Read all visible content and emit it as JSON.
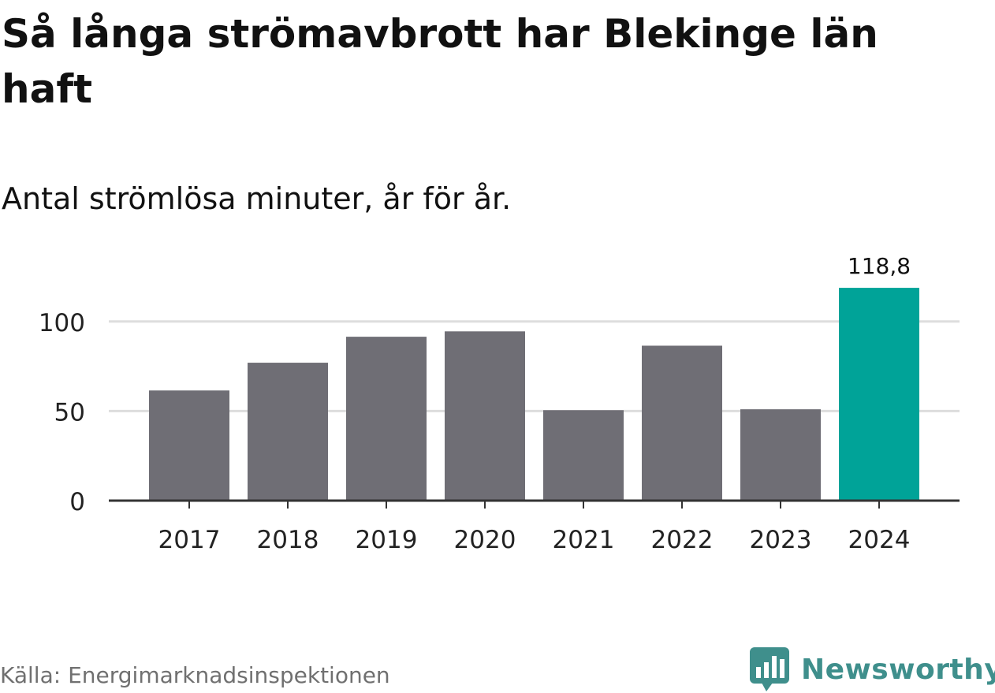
{
  "header": {
    "title": "Så långa strömavbrott har Blekinge län haft",
    "subtitle": "Antal strömlösa minuter, år för år."
  },
  "footer": {
    "source": "Källa: Energimarknadsinspektionen",
    "brand": "Newsworthy",
    "brand_icon": "bar-chart-speech-bubble-icon"
  },
  "colors": {
    "bar_default": "#6f6e75",
    "bar_highlight": "#00a398",
    "gridline": "#dddddd",
    "axis": "#333333",
    "brand": "#3f8f8c"
  },
  "chart_data": {
    "type": "bar",
    "title": "Så långa strömavbrott har Blekinge län haft",
    "subtitle": "Antal strömlösa minuter, år för år.",
    "categories": [
      "2017",
      "2018",
      "2019",
      "2020",
      "2021",
      "2022",
      "2023",
      "2024"
    ],
    "values": [
      61.5,
      77.0,
      91.5,
      94.5,
      50.5,
      86.5,
      51.0,
      118.8
    ],
    "highlight_index": 7,
    "data_labels": [
      {
        "index": 7,
        "text": "118,8"
      }
    ],
    "yticks": [
      0,
      50,
      100
    ],
    "ytick_labels": [
      "0",
      "50",
      "100"
    ],
    "ylim": [
      0,
      125
    ],
    "xlabel": "",
    "ylabel": "",
    "grid": true
  }
}
